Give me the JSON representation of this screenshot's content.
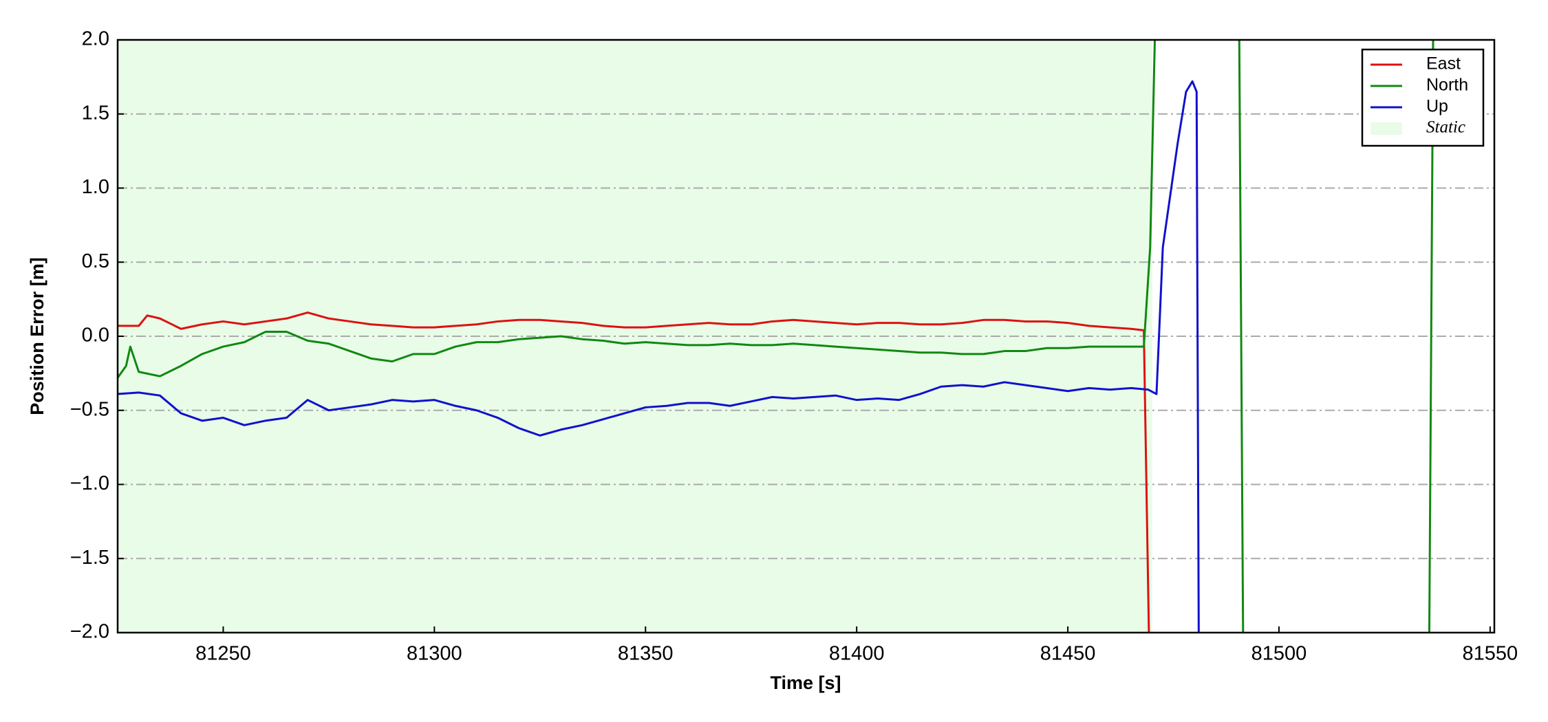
{
  "chart_data": {
    "type": "line",
    "xlabel": "Time [s]",
    "ylabel": "Position Error [m]",
    "xlim": [
      81225,
      81551
    ],
    "ylim": [
      -2,
      2
    ],
    "xticks": [
      81250,
      81300,
      81350,
      81400,
      81450,
      81500,
      81550
    ],
    "yticks": [
      {
        "value": -2,
        "label": "−2.0"
      },
      {
        "value": -1.5,
        "label": "−1.5"
      },
      {
        "value": -1,
        "label": "−1.0"
      },
      {
        "value": -0.5,
        "label": "−0.5"
      },
      {
        "value": 0,
        "label": "0.0"
      },
      {
        "value": 0.5,
        "label": "0.5"
      },
      {
        "value": 1,
        "label": "1.0"
      },
      {
        "value": 1.5,
        "label": "1.5"
      },
      {
        "value": 2,
        "label": "2.0"
      }
    ],
    "grid": true,
    "legend": "upper right",
    "static_span": [
      81225,
      81470
    ],
    "static_label": "Static",
    "static_color": "#e8fce8",
    "series": [
      {
        "name": "East",
        "color": "#dd1111",
        "x": [
          81225,
          81230,
          81232,
          81235,
          81240,
          81245,
          81250,
          81255,
          81260,
          81265,
          81270,
          81275,
          81280,
          81285,
          81290,
          81295,
          81300,
          81305,
          81310,
          81315,
          81320,
          81325,
          81330,
          81335,
          81340,
          81345,
          81350,
          81355,
          81360,
          81365,
          81370,
          81375,
          81380,
          81385,
          81390,
          81395,
          81400,
          81405,
          81410,
          81415,
          81420,
          81425,
          81430,
          81435,
          81440,
          81445,
          81450,
          81455,
          81460,
          81465,
          81468,
          81469.2
        ],
        "values": [
          0.07,
          0.07,
          0.14,
          0.12,
          0.05,
          0.08,
          0.1,
          0.08,
          0.1,
          0.12,
          0.16,
          0.12,
          0.1,
          0.08,
          0.07,
          0.06,
          0.06,
          0.07,
          0.08,
          0.1,
          0.11,
          0.11,
          0.1,
          0.09,
          0.07,
          0.06,
          0.06,
          0.07,
          0.08,
          0.09,
          0.08,
          0.08,
          0.1,
          0.11,
          0.1,
          0.09,
          0.08,
          0.09,
          0.09,
          0.08,
          0.08,
          0.09,
          0.11,
          0.11,
          0.1,
          0.1,
          0.09,
          0.07,
          0.06,
          0.05,
          0.04,
          -2
        ]
      },
      {
        "name": "North",
        "color": "#118811",
        "x": [
          81225,
          81227,
          81228,
          81230,
          81235,
          81240,
          81245,
          81250,
          81255,
          81260,
          81265,
          81270,
          81275,
          81280,
          81285,
          81290,
          81295,
          81300,
          81305,
          81310,
          81315,
          81320,
          81325,
          81330,
          81335,
          81340,
          81345,
          81350,
          81355,
          81360,
          81365,
          81370,
          81375,
          81380,
          81385,
          81390,
          81395,
          81400,
          81405,
          81410,
          81415,
          81420,
          81425,
          81430,
          81435,
          81440,
          81445,
          81450,
          81455,
          81460,
          81465,
          81468,
          81469.5,
          81470.6,
          81480,
          81490.6,
          81491.5,
          81510,
          81535.6,
          81536.5
        ],
        "values": [
          -0.28,
          -0.2,
          -0.07,
          -0.24,
          -0.27,
          -0.2,
          -0.12,
          -0.07,
          -0.04,
          0.03,
          0.03,
          -0.03,
          -0.05,
          -0.1,
          -0.15,
          -0.17,
          -0.12,
          -0.12,
          -0.07,
          -0.04,
          -0.04,
          -0.02,
          -0.01,
          0,
          -0.02,
          -0.03,
          -0.05,
          -0.04,
          -0.05,
          -0.06,
          -0.06,
          -0.05,
          -0.06,
          -0.06,
          -0.05,
          -0.06,
          -0.07,
          -0.08,
          -0.09,
          -0.1,
          -0.11,
          -0.11,
          -0.12,
          -0.12,
          -0.1,
          -0.1,
          -0.08,
          -0.08,
          -0.07,
          -0.07,
          -0.07,
          -0.07,
          0.6,
          2,
          null,
          2,
          -2,
          null,
          -2,
          2
        ]
      },
      {
        "name": "Up",
        "color": "#1111cc",
        "x": [
          81225,
          81230,
          81235,
          81240,
          81245,
          81250,
          81255,
          81260,
          81265,
          81270,
          81275,
          81280,
          81285,
          81290,
          81295,
          81300,
          81305,
          81310,
          81315,
          81320,
          81325,
          81330,
          81335,
          81340,
          81345,
          81350,
          81355,
          81360,
          81365,
          81370,
          81375,
          81380,
          81385,
          81390,
          81395,
          81400,
          81405,
          81410,
          81415,
          81420,
          81425,
          81430,
          81435,
          81440,
          81445,
          81450,
          81455,
          81460,
          81465,
          81469,
          81471,
          81472.5,
          81476,
          81478,
          81479.5,
          81480.5,
          81481
        ],
        "values": [
          -0.39,
          -0.38,
          -0.4,
          -0.52,
          -0.57,
          -0.55,
          -0.6,
          -0.57,
          -0.55,
          -0.43,
          -0.5,
          -0.48,
          -0.46,
          -0.43,
          -0.44,
          -0.43,
          -0.47,
          -0.5,
          -0.55,
          -0.62,
          -0.67,
          -0.63,
          -0.6,
          -0.56,
          -0.52,
          -0.48,
          -0.47,
          -0.45,
          -0.45,
          -0.47,
          -0.44,
          -0.41,
          -0.42,
          -0.41,
          -0.4,
          -0.43,
          -0.42,
          -0.43,
          -0.39,
          -0.34,
          -0.33,
          -0.34,
          -0.31,
          -0.33,
          -0.35,
          -0.37,
          -0.35,
          -0.36,
          -0.35,
          -0.36,
          -0.39,
          0.6,
          1.3,
          1.65,
          1.72,
          1.65,
          -2
        ]
      }
    ]
  }
}
